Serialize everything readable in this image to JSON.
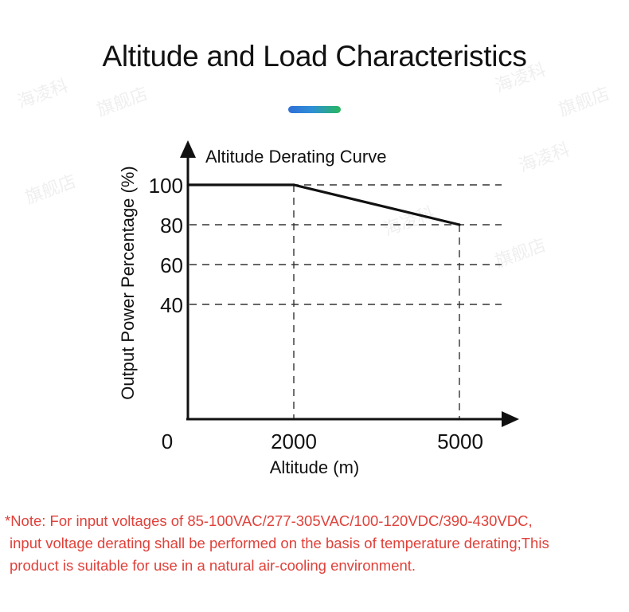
{
  "header": {
    "title": "Altitude and Load Characteristics"
  },
  "chart_data": {
    "type": "line",
    "title": "Altitude Derating Curve",
    "xlabel": "Altitude (m)",
    "ylabel": "Output Power Percentage (%)",
    "x_ticks": [
      "0",
      "2000",
      "5000"
    ],
    "y_ticks": [
      "100",
      "80",
      "60",
      "40"
    ],
    "series": [
      {
        "x": [
          0,
          2000,
          5000
        ],
        "y": [
          100,
          100,
          80
        ]
      }
    ],
    "grid": "dashed reference lines at 40, 60, 80, 100 % and at 2000 m, 5000 m",
    "colors": {
      "line": "#111111",
      "grid": "#333333"
    }
  },
  "note": {
    "line1": "*Note: For input voltages of 85-100VAC/277-305VAC/100-120VDC/390-430VDC,",
    "line2": "input voltage derating shall be performed on the basis of temperature derating;This",
    "line3": "product is suitable for use in a natural air-cooling environment."
  },
  "colors": {
    "accent_start": "#2f6fd6",
    "accent_end": "#27b85e",
    "note": "#e0413a"
  },
  "watermark": {
    "text_a": "海凌科",
    "text_b": "旗舰店"
  }
}
